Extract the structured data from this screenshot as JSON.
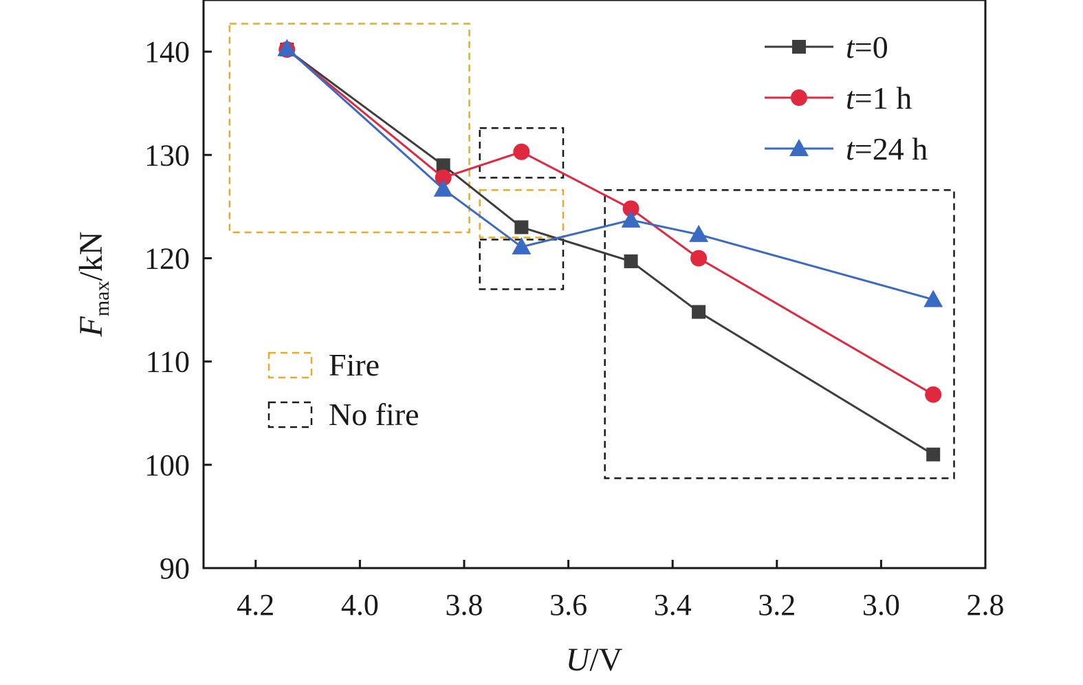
{
  "chart_data": {
    "type": "line",
    "title": "",
    "xlabel_var": "U",
    "xlabel_unit": "/V",
    "ylabel_var": "F",
    "ylabel_sub": "max",
    "ylabel_unit": "/kN",
    "xlim": [
      4.3,
      2.8
    ],
    "x_reversed": true,
    "ylim": [
      90,
      145
    ],
    "xticks": [
      4.2,
      4.0,
      3.8,
      3.6,
      3.4,
      3.2,
      3.0,
      2.8
    ],
    "xtick_labels": [
      "4.2",
      "4.0",
      "3.8",
      "3.6",
      "3.4",
      "3.2",
      "3.0",
      "2.8"
    ],
    "yticks": [
      90,
      100,
      110,
      120,
      130,
      140
    ],
    "ytick_labels": [
      "90",
      "100",
      "110",
      "120",
      "130",
      "140"
    ],
    "x": [
      4.14,
      3.84,
      3.69,
      3.48,
      3.35,
      2.9
    ],
    "grid": false,
    "legend_position": "top-right",
    "series": [
      {
        "name_var": "t",
        "name_rest": "=0",
        "color": "#3d3d3d",
        "marker": "square",
        "values": [
          140.2,
          129.0,
          123.0,
          119.7,
          114.8,
          101.0
        ]
      },
      {
        "name_var": "t",
        "name_rest": "=1 h",
        "color": "#e0283e",
        "marker": "circle",
        "values": [
          140.2,
          127.8,
          130.3,
          124.8,
          120.0,
          106.8
        ]
      },
      {
        "name_var": "t",
        "name_rest": "=24 h",
        "color": "#3a6bc4",
        "marker": "triangle",
        "values": [
          140.3,
          126.7,
          121.1,
          123.7,
          122.3,
          116.0
        ]
      }
    ],
    "regions": [
      {
        "kind": "Fire",
        "x_range": [
          4.25,
          3.79
        ],
        "y_range": [
          122.5,
          142.7
        ]
      },
      {
        "kind": "Fire",
        "x_range": [
          3.77,
          3.61
        ],
        "y_range": [
          122.0,
          126.6
        ]
      },
      {
        "kind": "No fire",
        "x_range": [
          3.77,
          3.61
        ],
        "y_range": [
          127.8,
          132.6
        ]
      },
      {
        "kind": "No fire",
        "x_range": [
          3.77,
          3.61
        ],
        "y_range": [
          117.0,
          121.8
        ]
      },
      {
        "kind": "No fire",
        "x_range": [
          3.53,
          2.86
        ],
        "y_range": [
          98.7,
          126.6
        ]
      }
    ],
    "region_legend": [
      {
        "label": "Fire",
        "color": "#e8aa2a"
      },
      {
        "label": "No fire",
        "color": "#1a1a1a"
      }
    ]
  }
}
